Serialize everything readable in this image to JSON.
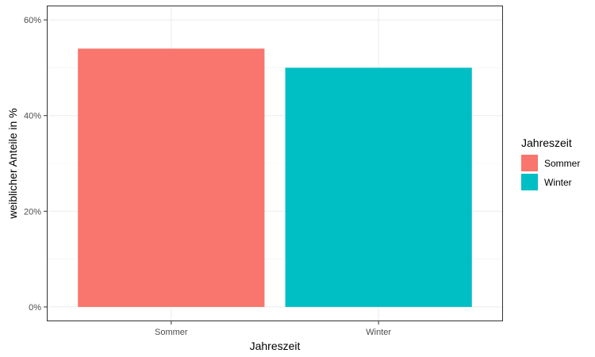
{
  "chart_data": {
    "type": "bar",
    "categories": [
      "Sommer",
      "Winter"
    ],
    "values": [
      54,
      50
    ],
    "colors": [
      "#F8766D",
      "#00BFC4"
    ],
    "xlabel": "Jahreszeit",
    "ylabel": "weiblicher Anteile in %",
    "ylim": [
      -3,
      63
    ],
    "y_ticks": [
      0,
      20,
      40,
      60
    ],
    "y_tick_labels": [
      "0%",
      "20%",
      "40%",
      "60%"
    ],
    "grid": true,
    "legend": {
      "title": "Jahreszeit",
      "placement": "right",
      "entries": [
        "Sommer",
        "Winter"
      ]
    }
  }
}
